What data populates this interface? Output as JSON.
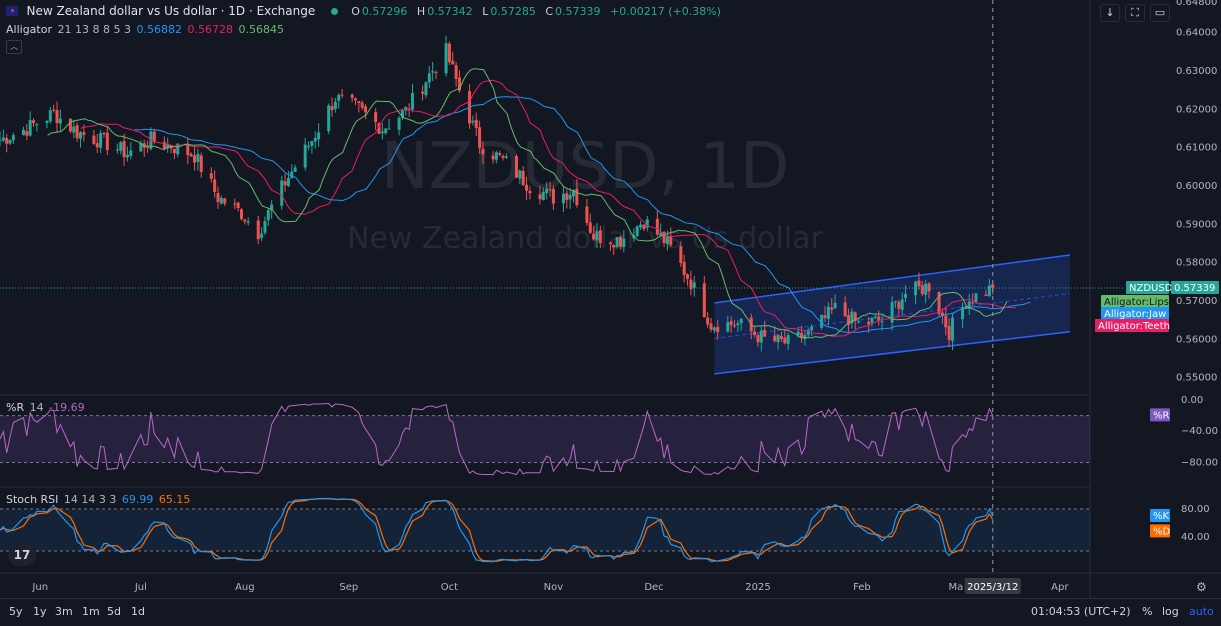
{
  "header": {
    "symbol_title": "New Zealand dollar vs Us dollar · 1D · Exchange",
    "ohlc": {
      "o_label": "O",
      "o": "0.57296",
      "h_label": "H",
      "h": "0.57342",
      "l_label": "L",
      "l": "0.57285",
      "c_label": "C",
      "c": "0.57339",
      "change": "+0.00217 (+0.38%)"
    },
    "alligator": {
      "name": "Alligator",
      "params": "21 13 8 8 5 3",
      "jaw": "0.56882",
      "teeth": "0.56728",
      "lips": "0.56845"
    }
  },
  "watermark": {
    "ticker": "NZDUSD, 1D",
    "name": "New Zealand dollar vs Us dollar"
  },
  "colors": {
    "background": "#131722",
    "up": "#26a69a",
    "down": "#ef5350",
    "jaw": "#2196f3",
    "teeth": "#e91e63",
    "lips": "#66bb6a",
    "channel": "#2962ff",
    "r_line": "#ba68c8",
    "k_line": "#2196f3",
    "d_line": "#ff6d00"
  },
  "price_axis": {
    "top_label": "0.64800",
    "ticks": [
      "0.64000",
      "0.63000",
      "0.62000",
      "0.61000",
      "0.60000",
      "0.59000",
      "0.58000",
      "0.57000",
      "0.56000",
      "0.55000"
    ],
    "last_symbol": "NZDUSD",
    "last_price": "0.57339",
    "badges": {
      "lips": "Alligator:Lips",
      "jaw": "Alligator:Jaw",
      "teeth": "Alligator:Teeth"
    }
  },
  "williams_r": {
    "name": "%R",
    "param": "14",
    "value": "-19.69",
    "ticks": [
      "0.00",
      "−40.00",
      "−80.00"
    ],
    "badge": "%R"
  },
  "stoch_rsi": {
    "name": "Stoch RSI",
    "params": "14 14 3 3",
    "k_value": "69.99",
    "d_value": "65.15",
    "ticks": [
      "80.00",
      "40.00"
    ],
    "badge_k": "%K",
    "badge_d": "%D"
  },
  "time_axis": {
    "labels": [
      "Jun",
      "Jul",
      "Aug",
      "Sep",
      "Oct",
      "Nov",
      "Dec",
      "2025",
      "Feb",
      "Ma",
      "Apr"
    ],
    "crosshair_date": "2025/3/12"
  },
  "bottom_bar": {
    "ranges": [
      "5y",
      "1y",
      "3m",
      "1m",
      "5d",
      "1d"
    ],
    "clock": "01:04:53 (UTC+2)",
    "percent": "%",
    "log": "log",
    "auto": "auto"
  },
  "chart_data": {
    "type": "candlestick",
    "title": "New Zealand dollar vs Us dollar · 1D · Exchange",
    "x_range": [
      "2024-05-20",
      "2025-04-10"
    ],
    "y_range": [
      0.5455,
      0.6485
    ],
    "anchor_closes": [
      [
        "2024-05-20",
        0.612
      ],
      [
        "2024-05-28",
        0.615
      ],
      [
        "2024-06-05",
        0.619
      ],
      [
        "2024-06-12",
        0.614
      ],
      [
        "2024-06-20",
        0.6115
      ],
      [
        "2024-06-27",
        0.6085
      ],
      [
        "2024-07-04",
        0.612
      ],
      [
        "2024-07-10",
        0.6105
      ],
      [
        "2024-07-17",
        0.608
      ],
      [
        "2024-07-24",
        0.597
      ],
      [
        "2024-07-31",
        0.593
      ],
      [
        "2024-08-05",
        0.588
      ],
      [
        "2024-08-13",
        0.601
      ],
      [
        "2024-08-21",
        0.612
      ],
      [
        "2024-08-28",
        0.623
      ],
      [
        "2024-09-04",
        0.62
      ],
      [
        "2024-09-11",
        0.615
      ],
      [
        "2024-09-18",
        0.6195
      ],
      [
        "2024-09-25",
        0.629
      ],
      [
        "2024-09-30",
        0.635
      ],
      [
        "2024-10-04",
        0.625
      ],
      [
        "2024-10-10",
        0.611
      ],
      [
        "2024-10-18",
        0.606
      ],
      [
        "2024-10-25",
        0.6
      ],
      [
        "2024-11-01",
        0.597
      ],
      [
        "2024-11-07",
        0.599
      ],
      [
        "2024-11-13",
        0.587
      ],
      [
        "2024-11-21",
        0.586
      ],
      [
        "2024-11-28",
        0.591
      ],
      [
        "2024-12-05",
        0.585
      ],
      [
        "2024-12-12",
        0.575
      ],
      [
        "2024-12-18",
        0.564
      ],
      [
        "2024-12-26",
        0.564
      ],
      [
        "2025-01-03",
        0.56
      ],
      [
        "2025-01-10",
        0.559
      ],
      [
        "2025-01-17",
        0.562
      ],
      [
        "2025-01-24",
        0.568
      ],
      [
        "2025-01-31",
        0.564
      ],
      [
        "2025-02-07",
        0.565
      ],
      [
        "2025-02-14",
        0.572
      ],
      [
        "2025-02-21",
        0.574
      ],
      [
        "2025-02-27",
        0.562
      ],
      [
        "2025-03-04",
        0.57
      ],
      [
        "2025-03-12",
        0.5734
      ]
    ],
    "channel": {
      "lower": [
        [
          "2024-12-19",
          0.551
        ],
        [
          "2025-04-04",
          0.562
        ]
      ],
      "upper": [
        [
          "2024-12-19",
          0.5695
        ],
        [
          "2025-04-04",
          0.582
        ]
      ]
    },
    "alligator_last": {
      "jaw": 0.56882,
      "teeth": 0.56728,
      "lips": 0.56845
    },
    "last_close": 0.57339,
    "williams_r_last": -19.69,
    "stoch_rsi_last": {
      "k": 69.99,
      "d": 65.15
    }
  }
}
